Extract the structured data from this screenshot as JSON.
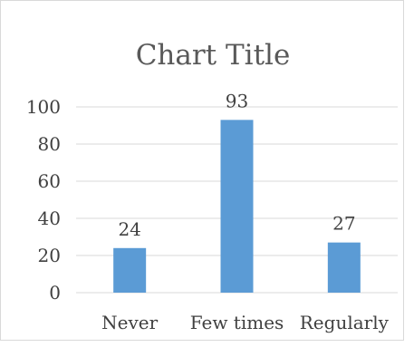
{
  "chart_data": {
    "type": "bar",
    "title": "Chart Title",
    "categories": [
      "Never",
      "Few times",
      "Regularly"
    ],
    "values": [
      24,
      93,
      27
    ],
    "data_labels": [
      "24",
      "93",
      "27"
    ],
    "xlabel": "",
    "ylabel": "",
    "ylim": [
      0,
      100
    ],
    "yticks": [
      "0",
      "20",
      "40",
      "60",
      "80",
      "100"
    ],
    "grid": true,
    "legend": "none",
    "colors": {
      "bar": "#5b9bd5",
      "grid": "#d9d9d9",
      "text": "#404040",
      "title": "#595959"
    }
  }
}
